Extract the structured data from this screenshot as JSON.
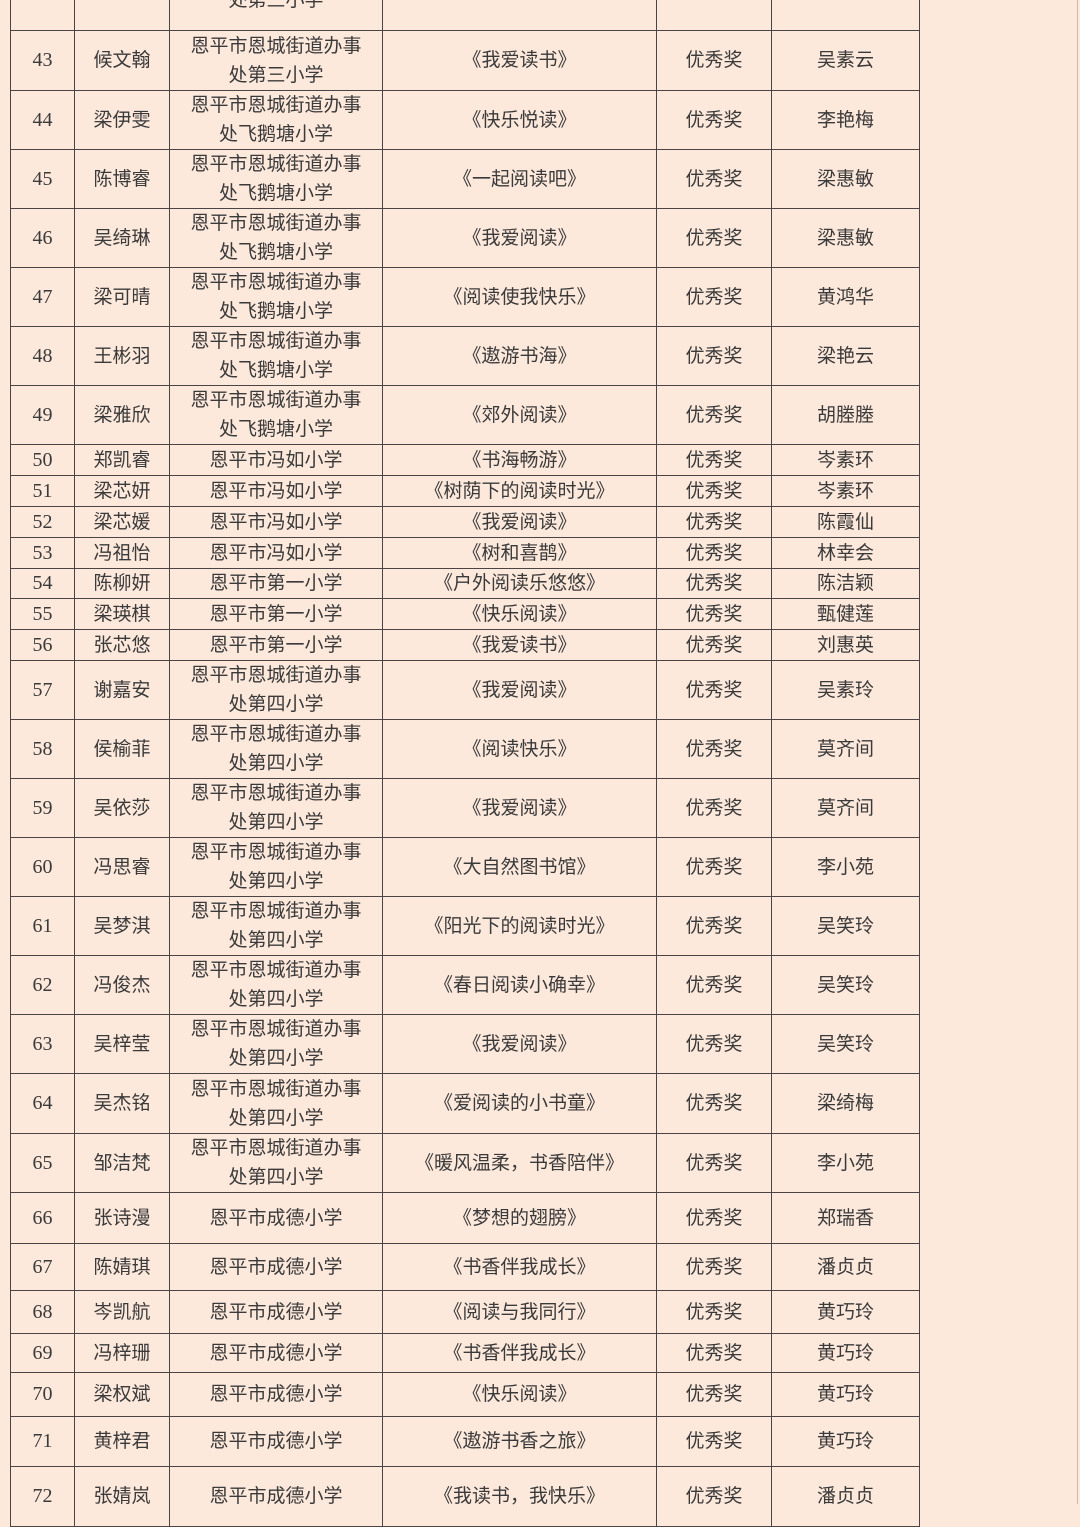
{
  "rows": [
    {
      "no": "",
      "name": "",
      "school": [
        "",
        "处第三小学"
      ],
      "work": "",
      "award": "",
      "teacher": ""
    },
    {
      "no": "43",
      "name": "候文翰",
      "school": [
        "恩平市恩城街道办事",
        "处第三小学"
      ],
      "work": "《我爱读书》",
      "award": "优秀奖",
      "teacher": "吴素云"
    },
    {
      "no": "44",
      "name": "梁伊雯",
      "school": [
        "恩平市恩城街道办事",
        "处飞鹅塘小学"
      ],
      "work": "《快乐悦读》",
      "award": "优秀奖",
      "teacher": "李艳梅"
    },
    {
      "no": "45",
      "name": "陈博睿",
      "school": [
        "恩平市恩城街道办事",
        "处飞鹅塘小学"
      ],
      "work": "《一起阅读吧》",
      "award": "优秀奖",
      "teacher": "梁惠敏"
    },
    {
      "no": "46",
      "name": "吴绮琳",
      "school": [
        "恩平市恩城街道办事",
        "处飞鹅塘小学"
      ],
      "work": "《我爱阅读》",
      "award": "优秀奖",
      "teacher": "梁惠敏"
    },
    {
      "no": "47",
      "name": "梁可晴",
      "school": [
        "恩平市恩城街道办事",
        "处飞鹅塘小学"
      ],
      "work": "《阅读使我快乐》",
      "award": "优秀奖",
      "teacher": "黄鸿华"
    },
    {
      "no": "48",
      "name": "王彬羽",
      "school": [
        "恩平市恩城街道办事",
        "处飞鹅塘小学"
      ],
      "work": "《遨游书海》",
      "award": "优秀奖",
      "teacher": "梁艳云"
    },
    {
      "no": "49",
      "name": "梁雅欣",
      "school": [
        "恩平市恩城街道办事",
        "处飞鹅塘小学"
      ],
      "work": "《郊外阅读》",
      "award": "优秀奖",
      "teacher": "胡塍塍"
    },
    {
      "no": "50",
      "name": "郑凯睿",
      "school": [
        "恩平市冯如小学"
      ],
      "work": "《书海畅游》",
      "award": "优秀奖",
      "teacher": "岑素环"
    },
    {
      "no": "51",
      "name": "梁芯妍",
      "school": [
        "恩平市冯如小学"
      ],
      "work": "《树荫下的阅读时光》",
      "award": "优秀奖",
      "teacher": "岑素环"
    },
    {
      "no": "52",
      "name": "梁芯媛",
      "school": [
        "恩平市冯如小学"
      ],
      "work": "《我爱阅读》",
      "award": "优秀奖",
      "teacher": "陈霞仙"
    },
    {
      "no": "53",
      "name": "冯祖怡",
      "school": [
        "恩平市冯如小学"
      ],
      "work": "《树和喜鹊》",
      "award": "优秀奖",
      "teacher": "林幸会"
    },
    {
      "no": "54",
      "name": "陈柳妍",
      "school": [
        "恩平市第一小学"
      ],
      "work": "《户外阅读乐悠悠》",
      "award": "优秀奖",
      "teacher": "陈洁颖"
    },
    {
      "no": "55",
      "name": "梁瑛棋",
      "school": [
        "恩平市第一小学"
      ],
      "work": "《快乐阅读》",
      "award": "优秀奖",
      "teacher": "甄健莲"
    },
    {
      "no": "56",
      "name": "张芯悠",
      "school": [
        "恩平市第一小学"
      ],
      "work": "《我爱读书》",
      "award": "优秀奖",
      "teacher": "刘惠英"
    },
    {
      "no": "57",
      "name": "谢嘉安",
      "school": [
        "恩平市恩城街道办事",
        "处第四小学"
      ],
      "work": "《我爱阅读》",
      "award": "优秀奖",
      "teacher": "吴素玲"
    },
    {
      "no": "58",
      "name": "侯榆菲",
      "school": [
        "恩平市恩城街道办事",
        "处第四小学"
      ],
      "work": "《阅读快乐》",
      "award": "优秀奖",
      "teacher": "莫齐间"
    },
    {
      "no": "59",
      "name": "吴依莎",
      "school": [
        "恩平市恩城街道办事",
        "处第四小学"
      ],
      "work": "《我爱阅读》",
      "award": "优秀奖",
      "teacher": "莫齐间"
    },
    {
      "no": "60",
      "name": "冯思睿",
      "school": [
        "恩平市恩城街道办事",
        "处第四小学"
      ],
      "work": "《大自然图书馆》",
      "award": "优秀奖",
      "teacher": "李小苑"
    },
    {
      "no": "61",
      "name": "吴梦淇",
      "school": [
        "恩平市恩城街道办事",
        "处第四小学"
      ],
      "work": "《阳光下的阅读时光》",
      "award": "优秀奖",
      "teacher": "吴笑玲"
    },
    {
      "no": "62",
      "name": "冯俊杰",
      "school": [
        "恩平市恩城街道办事",
        "处第四小学"
      ],
      "work": "《春日阅读小确幸》",
      "award": "优秀奖",
      "teacher": "吴笑玲"
    },
    {
      "no": "63",
      "name": "吴梓莹",
      "school": [
        "恩平市恩城街道办事",
        "处第四小学"
      ],
      "work": "《我爱阅读》",
      "award": "优秀奖",
      "teacher": "吴笑玲"
    },
    {
      "no": "64",
      "name": "吴杰铭",
      "school": [
        "恩平市恩城街道办事",
        "处第四小学"
      ],
      "work": "《爱阅读的小书童》",
      "award": "优秀奖",
      "teacher": "梁绮梅"
    },
    {
      "no": "65",
      "name": "邹洁梵",
      "school": [
        "恩平市恩城街道办事",
        "处第四小学"
      ],
      "work": "《暖风温柔，书香陪伴》",
      "award": "优秀奖",
      "teacher": "李小苑"
    },
    {
      "no": "66",
      "name": "张诗漫",
      "school": [
        "恩平市成德小学"
      ],
      "work": "《梦想的翅膀》",
      "award": "优秀奖",
      "teacher": "郑瑞香"
    },
    {
      "no": "67",
      "name": "陈婧琪",
      "school": [
        "恩平市成德小学"
      ],
      "work": "《书香伴我成长》",
      "award": "优秀奖",
      "teacher": "潘贞贞"
    },
    {
      "no": "68",
      "name": "岑凯航",
      "school": [
        "恩平市成德小学"
      ],
      "work": "《阅读与我同行》",
      "award": "优秀奖",
      "teacher": "黄巧玲"
    },
    {
      "no": "69",
      "name": "冯梓珊",
      "school": [
        "恩平市成德小学"
      ],
      "work": "《书香伴我成长》",
      "award": "优秀奖",
      "teacher": "黄巧玲"
    },
    {
      "no": "70",
      "name": "梁权斌",
      "school": [
        "恩平市成德小学"
      ],
      "work": "《快乐阅读》",
      "award": "优秀奖",
      "teacher": "黄巧玲"
    },
    {
      "no": "71",
      "name": "黄梓君",
      "school": [
        "恩平市成德小学"
      ],
      "work": "《遨游书香之旅》",
      "award": "优秀奖",
      "teacher": "黄巧玲"
    },
    {
      "no": "72",
      "name": "张婧岚",
      "school": [
        "恩平市成德小学"
      ],
      "work": "《我读书，我快乐》",
      "award": "优秀奖",
      "teacher": "潘贞贞"
    }
  ]
}
